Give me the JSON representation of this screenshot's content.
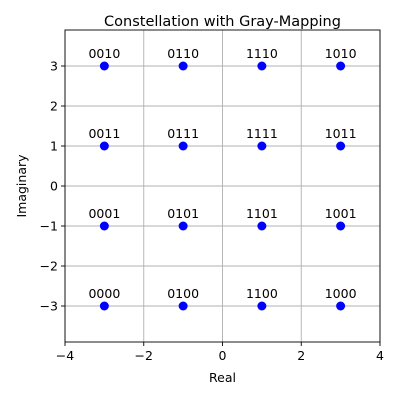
{
  "chart_data": {
    "type": "scatter",
    "title": "Constellation with Gray-Mapping",
    "xlabel": "Real",
    "ylabel": "Imaginary",
    "xlim": [
      -4,
      4
    ],
    "ylim": [
      -3.9,
      3.9
    ],
    "xticks": [
      -4,
      -2,
      0,
      2,
      4
    ],
    "yticks": [
      -3,
      -2,
      -1,
      0,
      1,
      2,
      3
    ],
    "xtick_labels": [
      "−4",
      "−2",
      "0",
      "2",
      "4"
    ],
    "ytick_labels": [
      "−3",
      "−2",
      "−1",
      "0",
      "1",
      "2",
      "3"
    ],
    "grid": true,
    "marker_color": "#0000ff",
    "points": [
      {
        "x": -3,
        "y": 3,
        "label": "0010"
      },
      {
        "x": -1,
        "y": 3,
        "label": "0110"
      },
      {
        "x": 1,
        "y": 3,
        "label": "1110"
      },
      {
        "x": 3,
        "y": 3,
        "label": "1010"
      },
      {
        "x": -3,
        "y": 1,
        "label": "0011"
      },
      {
        "x": -1,
        "y": 1,
        "label": "0111"
      },
      {
        "x": 1,
        "y": 1,
        "label": "1111"
      },
      {
        "x": 3,
        "y": 1,
        "label": "1011"
      },
      {
        "x": -3,
        "y": -1,
        "label": "0001"
      },
      {
        "x": -1,
        "y": -1,
        "label": "0101"
      },
      {
        "x": 1,
        "y": -1,
        "label": "1101"
      },
      {
        "x": 3,
        "y": -1,
        "label": "1001"
      },
      {
        "x": -3,
        "y": -3,
        "label": "0000"
      },
      {
        "x": -1,
        "y": -3,
        "label": "0100"
      },
      {
        "x": 1,
        "y": -3,
        "label": "1100"
      },
      {
        "x": 3,
        "y": -3,
        "label": "1000"
      }
    ]
  }
}
